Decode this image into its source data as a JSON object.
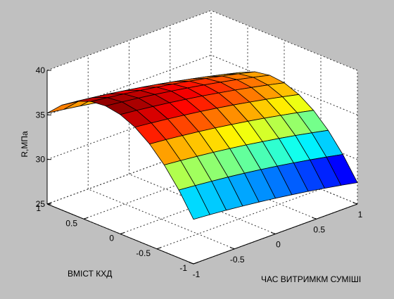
{
  "chart_data": {
    "type": "surface",
    "zlabel": "R,МПа",
    "xlabel": "ЧАС ВИТРИМКМ СУМІШІ",
    "ylabel": "ВМІСТ КХД",
    "xlim": [
      -1,
      1
    ],
    "ylim": [
      -1,
      1
    ],
    "zlim": [
      25,
      40
    ],
    "xticks": [
      "-1",
      "-0.5",
      "0",
      "0.5",
      "1"
    ],
    "yticks": [
      "-1",
      "-0.5",
      "0",
      "0.5",
      "1"
    ],
    "zticks": [
      "25",
      "30",
      "35",
      "40"
    ],
    "grid": true,
    "colormap": "jet",
    "grid_points": 11,
    "corner_values": {
      "x-1_y-1": 30.0,
      "x1_y-1": 27.4,
      "x-1_y1": 35.2,
      "x1_y1": 31.5
    }
  }
}
